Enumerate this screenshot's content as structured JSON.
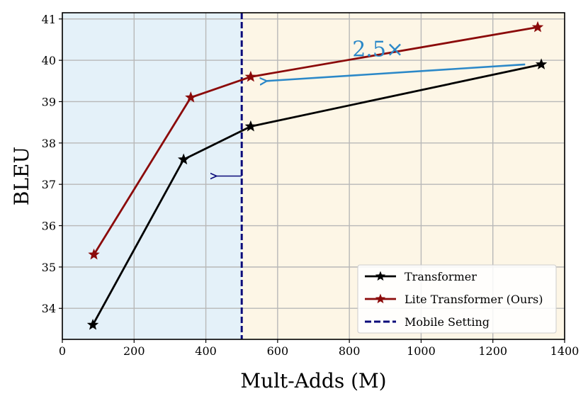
{
  "chart_data": {
    "type": "line",
    "xlabel": "Mult-Adds (M)",
    "ylabel": "BLEU",
    "xlim": [
      0,
      1400
    ],
    "ylim": [
      33.25,
      41.15
    ],
    "xticks": [
      0,
      200,
      400,
      600,
      800,
      1000,
      1200,
      1400
    ],
    "yticks": [
      34,
      35,
      36,
      37,
      38,
      39,
      40,
      41
    ],
    "grid": true,
    "regions": [
      {
        "name": "mobile",
        "x_range": [
          0,
          500
        ],
        "color": "#e4f1f9"
      },
      {
        "name": "non-mobile",
        "x_range": [
          500,
          1400
        ],
        "color": "#fdf6e6"
      }
    ],
    "series": [
      {
        "name": "Transformer",
        "color": "#000000",
        "marker": "star",
        "x": [
          85,
          338,
          525,
          1335
        ],
        "y": [
          33.6,
          37.6,
          38.4,
          39.9
        ]
      },
      {
        "name": "Lite Transformer (Ours)",
        "color": "#8b0a0a",
        "marker": "star",
        "x": [
          88,
          358,
          525,
          1325
        ],
        "y": [
          35.3,
          39.1,
          39.6,
          40.8
        ]
      }
    ],
    "vline": {
      "name": "Mobile Setting",
      "x": 500,
      "color": "#0b0b7a",
      "style": "dashed"
    },
    "annotations": [
      {
        "text": "2.5×",
        "x": 880,
        "y": 40.1,
        "color": "#2b88c8",
        "arrow_from": [
          1290,
          39.9
        ],
        "arrow_to": [
          570,
          39.5
        ]
      },
      {
        "text": "",
        "color": "#0b0b7a",
        "arrow_from": [
          500,
          37.2
        ],
        "arrow_to": [
          430,
          37.2
        ]
      }
    ],
    "legend": {
      "position": "lower-right",
      "entries": [
        {
          "label": "Transformer",
          "color": "#000000",
          "style": "solid-star"
        },
        {
          "label": "Lite Transformer (Ours)",
          "color": "#8b0a0a",
          "style": "solid-star"
        },
        {
          "label": "Mobile Setting",
          "color": "#0b0b7a",
          "style": "dashed"
        }
      ]
    }
  }
}
